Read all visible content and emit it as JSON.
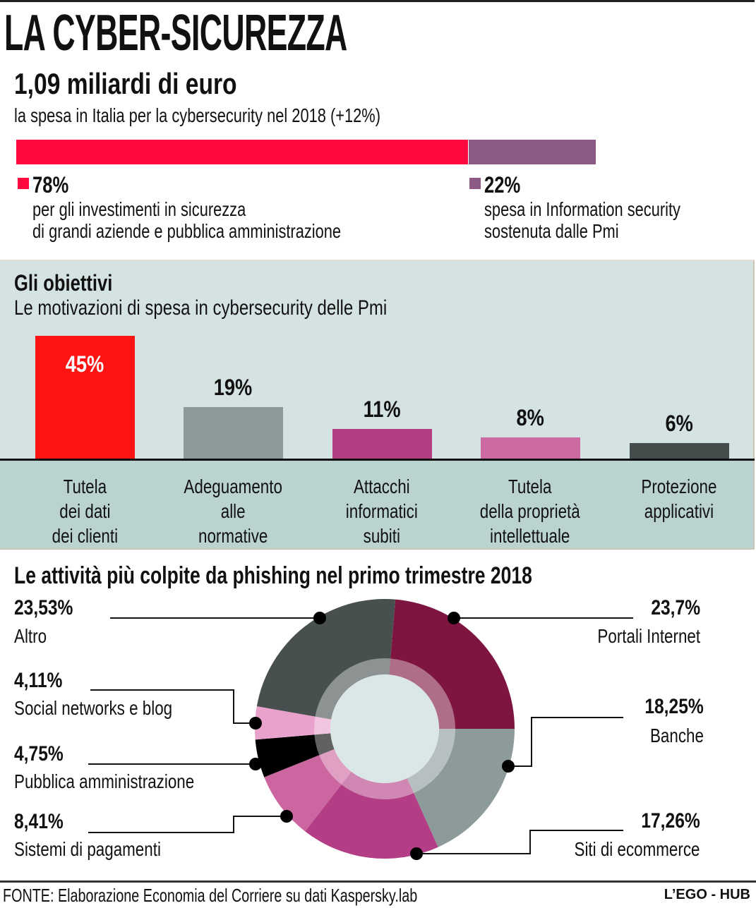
{
  "title": "LA CYBER-SICUREZZA",
  "headline": "1,09 miliardi di euro",
  "subline": "la spesa in Italia per la cybersecurity nel 2018 (+12%)",
  "spending_split": {
    "segments": [
      {
        "pct_label": "78%",
        "value": 78,
        "color": "#ff0a3f",
        "lines": [
          "per gli investimenti in sicurezza",
          "di grandi aziende e pubblica amministrazione"
        ]
      },
      {
        "pct_label": "22%",
        "value": 22,
        "color": "#8d5a86",
        "lines": [
          "spesa in Information security",
          "sostenuta dalle Pmi"
        ]
      }
    ]
  },
  "objectives": {
    "title": "Gli obiettivi",
    "subtitle": "Le motivazioni di spesa in cybersecurity delle Pmi"
  },
  "phishing": {
    "title": "Le attività più colpite da phishing nel primo trimestre 2018"
  },
  "chart_data": [
    {
      "type": "bar",
      "title": "Gli obiettivi",
      "subtitle": "Le motivazioni di spesa in cybersecurity delle Pmi",
      "categories": [
        [
          "Tutela",
          "dei dati",
          "dei clienti"
        ],
        [
          "Adeguamento",
          "alle",
          "normative"
        ],
        [
          "Attacchi",
          "informatici",
          "subiti"
        ],
        [
          "Tutela",
          "della proprietà",
          "intellettuale"
        ],
        [
          "Protezione",
          "applicativi"
        ]
      ],
      "values": [
        45,
        19,
        11,
        8,
        6
      ],
      "value_labels": [
        "45%",
        "19%",
        "11%",
        "8%",
        "6%"
      ],
      "colors": [
        "#ff1414",
        "#8c9999",
        "#b33f82",
        "#cd69a1",
        "#454c4c"
      ],
      "ylabel": "",
      "xlabel": "",
      "ylim": [
        0,
        45
      ],
      "grid": false
    },
    {
      "type": "pie",
      "title": "Le attività più colpite da phishing nel primo trimestre 2018",
      "donut": true,
      "slices": [
        {
          "name": "Portali Internet",
          "value": 23.7,
          "label": "23,7%",
          "color": "#7e1540",
          "side": "right"
        },
        {
          "name": "Banche",
          "value": 18.25,
          "label": "18,25%",
          "color": "#8c9a9a",
          "side": "right"
        },
        {
          "name": "Siti di ecommerce",
          "value": 17.26,
          "label": "17,26%",
          "color": "#b33e85",
          "side": "right"
        },
        {
          "name": "Sistemi di pagamenti",
          "value": 8.41,
          "label": "8,41%",
          "color": "#cb66a0",
          "side": "left"
        },
        {
          "name": "Pubblica amministrazione",
          "value": 4.75,
          "label": "4,75%",
          "color": "#000000",
          "side": "left"
        },
        {
          "name": "Social networks e blog",
          "value": 4.11,
          "label": "4,11%",
          "color": "#e8a2cb",
          "side": "left"
        },
        {
          "name": "Altro",
          "value": 23.53,
          "label": "23,53%",
          "color": "#474f4f",
          "side": "left"
        }
      ]
    }
  ],
  "footer": {
    "source": "FONTE: Elaborazione Economia del Corriere su dati Kaspersky.lab",
    "brand": "L’EGO - HUB"
  }
}
